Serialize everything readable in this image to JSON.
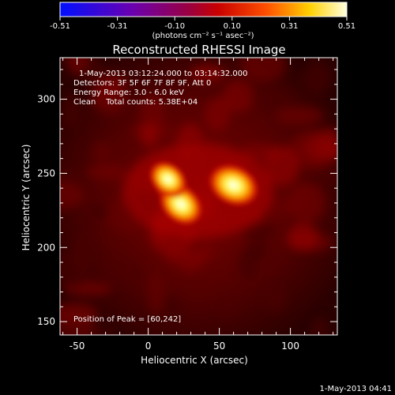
{
  "chart_data": {
    "type": "heatmap",
    "title": "Reconstructed RHESSI Image",
    "xlabel": "Heliocentric X (arcsec)",
    "ylabel": "Heliocentric Y (arcsec)",
    "xlim": [
      -62,
      133
    ],
    "ylim": [
      141,
      328
    ],
    "x_ticks": [
      -50,
      0,
      50,
      100
    ],
    "y_ticks": [
      150,
      200,
      250,
      300
    ],
    "colorbar": {
      "label": "(photons cm⁻² s⁻¹ asec⁻²)",
      "min": -0.51,
      "max": 0.51,
      "ticks": [
        "-0.51",
        "-0.31",
        "-0.10",
        "0.10",
        "0.31",
        "0.51"
      ],
      "colormap": "blue-purple-red-yellow-white"
    },
    "annotations": [
      "1-May-2013 03:12:24.000 to 03:14:32.000",
      "Detectors: 3F 5F 6F 7F 8F 9F, Att 0",
      "Energy Range: 3.0 - 6.0 keV",
      "Clean    Total counts: 5.38E+04"
    ],
    "peak_label": "Position of Peak = [60,242]",
    "peak_position": [
      60,
      242
    ],
    "sources": [
      {
        "x": 60,
        "y": 242,
        "relative_intensity": 1.0
      },
      {
        "x": 23,
        "y": 229,
        "relative_intensity": 0.9
      },
      {
        "x": 14,
        "y": 246,
        "relative_intensity": 0.75
      }
    ],
    "timestamp": "1-May-2013 04:41",
    "grid": false
  }
}
